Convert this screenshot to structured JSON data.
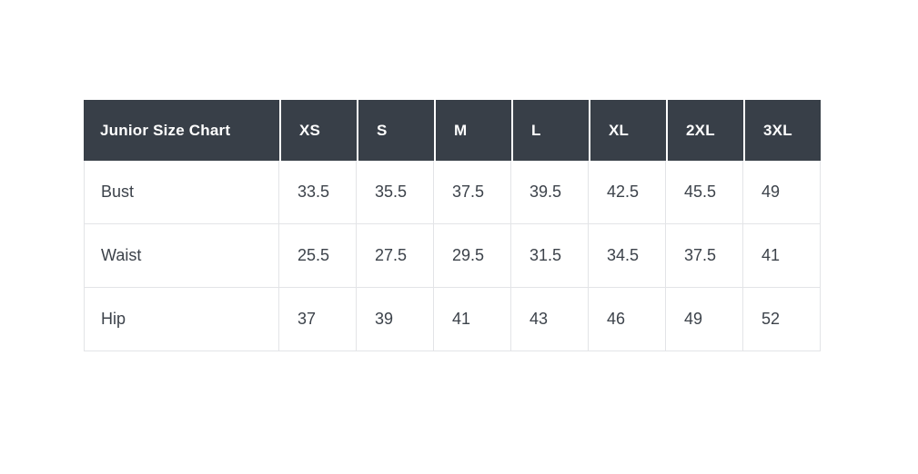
{
  "chart_data": {
    "type": "table",
    "title": "Junior Size Chart",
    "columns": [
      "XS",
      "S",
      "M",
      "L",
      "XL",
      "2XL",
      "3XL"
    ],
    "rows": [
      {
        "label": "Bust",
        "values": [
          "33.5",
          "35.5",
          "37.5",
          "39.5",
          "42.5",
          "45.5",
          "49"
        ]
      },
      {
        "label": "Waist",
        "values": [
          "25.5",
          "27.5",
          "29.5",
          "31.5",
          "34.5",
          "37.5",
          "41"
        ]
      },
      {
        "label": "Hip",
        "values": [
          "37",
          "39",
          "41",
          "43",
          "46",
          "49",
          "52"
        ]
      }
    ],
    "layout": {
      "header_alignment": "left",
      "cell_alignment": "left",
      "grid": "on"
    },
    "colors": {
      "header_background": "#383f48",
      "header_text": "#ffffff",
      "body_background": "#ffffff",
      "body_text": "#3c424a",
      "border": "#e3e4e7",
      "header_separator": "#ffffff"
    }
  }
}
